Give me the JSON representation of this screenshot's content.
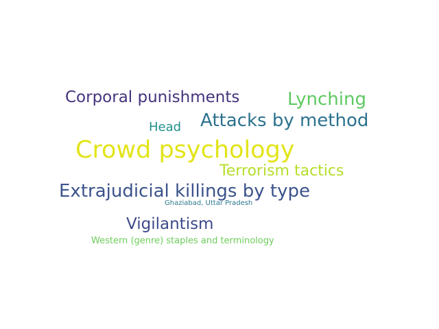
{
  "words": [
    {
      "text": "Corporal punishments",
      "color": "#45337d"
    },
    {
      "text": "Lynching",
      "color": "#5ec962"
    },
    {
      "text": "Head",
      "color": "#21918c"
    },
    {
      "text": "Attacks by method",
      "color": "#2c728e"
    },
    {
      "text": "Crowd psychology",
      "color": "#e2e418"
    },
    {
      "text": "Terrorism tactics",
      "color": "#b5de2b"
    },
    {
      "text": "Extrajudicial killings by type",
      "color": "#3b528b"
    },
    {
      "text": "Ghaziabad, Uttar Pradesh",
      "color": "#2a788e"
    },
    {
      "text": "Vigilantism",
      "color": "#3e4a89"
    },
    {
      "text": "Western (genre) staples and terminology",
      "color": "#6ccd5a"
    }
  ]
}
